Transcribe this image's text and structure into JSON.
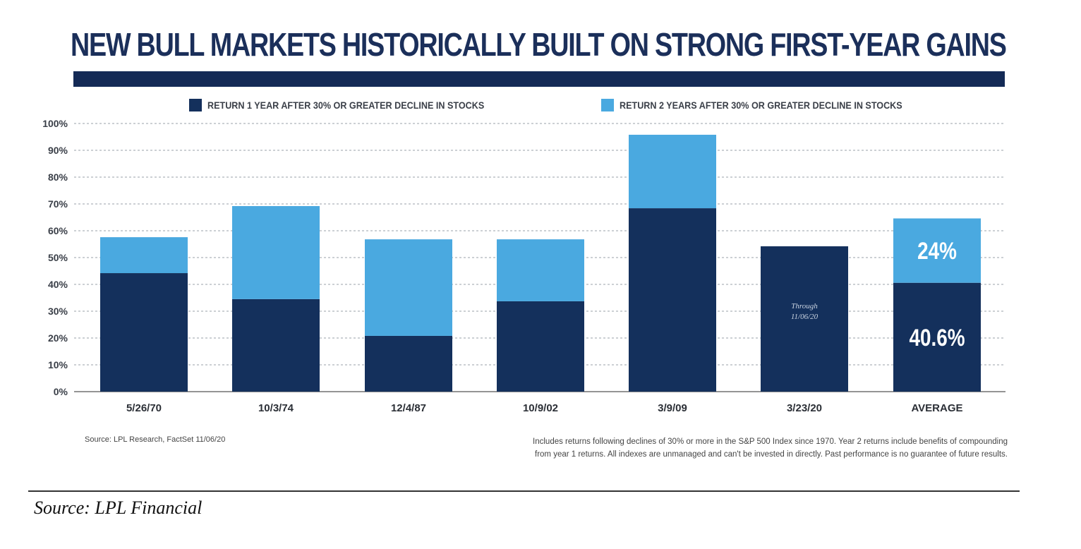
{
  "colors": {
    "year1": "#14305c",
    "year2": "#4aa9e0",
    "title": "#1b2f5a",
    "rule": "#142a56",
    "grid": "#9aa0a8"
  },
  "chart_data": {
    "type": "bar",
    "stacked": true,
    "title": "NEW BULL MARKETS HISTORICALLY BUILT ON STRONG FIRST-YEAR GAINS",
    "xlabel": "",
    "ylabel": "",
    "ylim": [
      0,
      100
    ],
    "yticks": [
      0,
      10,
      20,
      30,
      40,
      50,
      60,
      70,
      80,
      90,
      100
    ],
    "ytick_labels": [
      "0%",
      "10%",
      "20%",
      "30%",
      "40%",
      "50%",
      "60%",
      "70%",
      "80%",
      "90%",
      "100%"
    ],
    "grid": true,
    "legend_position": "top",
    "categories": [
      "5/26/70",
      "10/3/74",
      "12/4/87",
      "10/9/02",
      "3/9/09",
      "3/23/20",
      "AVERAGE"
    ],
    "series": [
      {
        "name": "RETURN 1 YEAR AFTER 30% OR GREATER DECLINE IN STOCKS",
        "color": "#14305c",
        "values": [
          44.2,
          34.5,
          20.8,
          33.7,
          68.4,
          54.2,
          40.6
        ]
      },
      {
        "name": "RETURN 2 YEARS AFTER 30% OR GREATER DECLINE IN STOCKS",
        "color": "#4aa9e0",
        "values": [
          13.4,
          34.7,
          36.0,
          23.1,
          27.4,
          0,
          24.0
        ]
      }
    ],
    "annotations": [
      {
        "category": "3/23/20",
        "text_line1": "Through",
        "text_line2": "11/06/20"
      },
      {
        "category": "AVERAGE",
        "series": 0,
        "text": "40.6%"
      },
      {
        "category": "AVERAGE",
        "series": 1,
        "text": "24%"
      }
    ]
  },
  "footer": {
    "source_small": "Source: LPL Research, FactSet 11/06/20",
    "note_line1": "Includes returns following declines of 30% or more in the S&P 500 Index since 1970. Year 2 returns include benefits of compounding",
    "note_line2": "from year 1 returns. All indexes are unmanaged and can't be invested in directly. Past performance is no guarantee of future results.",
    "credit": "Source: LPL Financial"
  }
}
